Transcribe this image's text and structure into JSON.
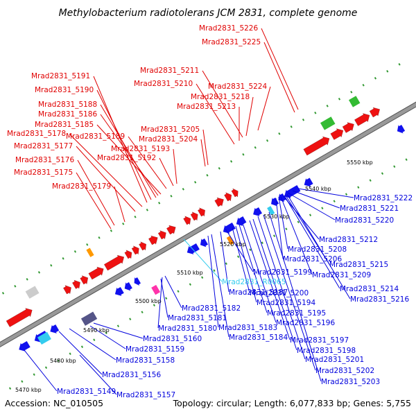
{
  "title": "Methylobacterium radiotolerans JCM 2831, complete genome",
  "footer": {
    "accession": "Accession: NC_010505",
    "topology": "Topology: circular; Length: 6,077,833 bp; Genes: 5,755"
  },
  "colors": {
    "forward_label": "#e00000",
    "reverse_label": "#0000dd",
    "rna_label": "#33ccee",
    "backbone": "#999999",
    "forward_gene": "#ee1111",
    "reverse_gene": "#1111ee",
    "tick_dot": "#339933"
  },
  "scale_ticks": [
    "5470 kbp",
    "5480 kbp",
    "5490 kbp",
    "5500 kbp",
    "5510 kbp",
    "5520 kbp",
    "5530 kbp",
    "5540 kbp",
    "5550 kbp"
  ],
  "forward_labels": [
    "Mrad2831_5226",
    "Mrad2831_5225",
    "Mrad2831_5211",
    "Mrad2831_5224",
    "Mrad2831_5210",
    "Mrad2831_5218",
    "Mrad2831_5213",
    "Mrad2831_5191",
    "Mrad2831_5190",
    "Mrad2831_5188",
    "Mrad2831_5186",
    "Mrad2831_5185",
    "Mrad2831_5205",
    "Mrad2831_5178",
    "Mrad2831_5189",
    "Mrad2831_5204",
    "Mrad2831_5177",
    "Mrad2831_5193",
    "Mrad2831_5192",
    "Mrad2831_5176",
    "Mrad2831_5175",
    "Mrad2831_5179"
  ],
  "reverse_labels": [
    "Mrad2831_5222",
    "Mrad2831_5221",
    "Mrad2831_5220",
    "Mrad2831_5212",
    "Mrad2831_5208",
    "Mrad2831_5206",
    "Mrad2831_5215",
    "Mrad2831_5209",
    "Mrad2831_5199",
    "Mrad2831_R0065",
    "Mrad2831_5214",
    "Mrad2831_5187",
    "Mrad2831_5200",
    "Mrad2831_5216",
    "Mrad2831_5194",
    "Mrad2831_5182",
    "Mrad2831_5195",
    "Mrad2831_5181",
    "Mrad2831_5196",
    "Mrad2831_5180",
    "Mrad2831_5183",
    "Mrad2831_5184",
    "Mrad2831_5160",
    "Mrad2831_5197",
    "Mrad2831_5159",
    "Mrad2831_5198",
    "Mrad2831_5158",
    "Mrad2831_5201",
    "Mrad2831_5156",
    "Mrad2831_5202",
    "Mrad2831_5203",
    "Mrad2831_5149",
    "Mrad2831_5157"
  ]
}
